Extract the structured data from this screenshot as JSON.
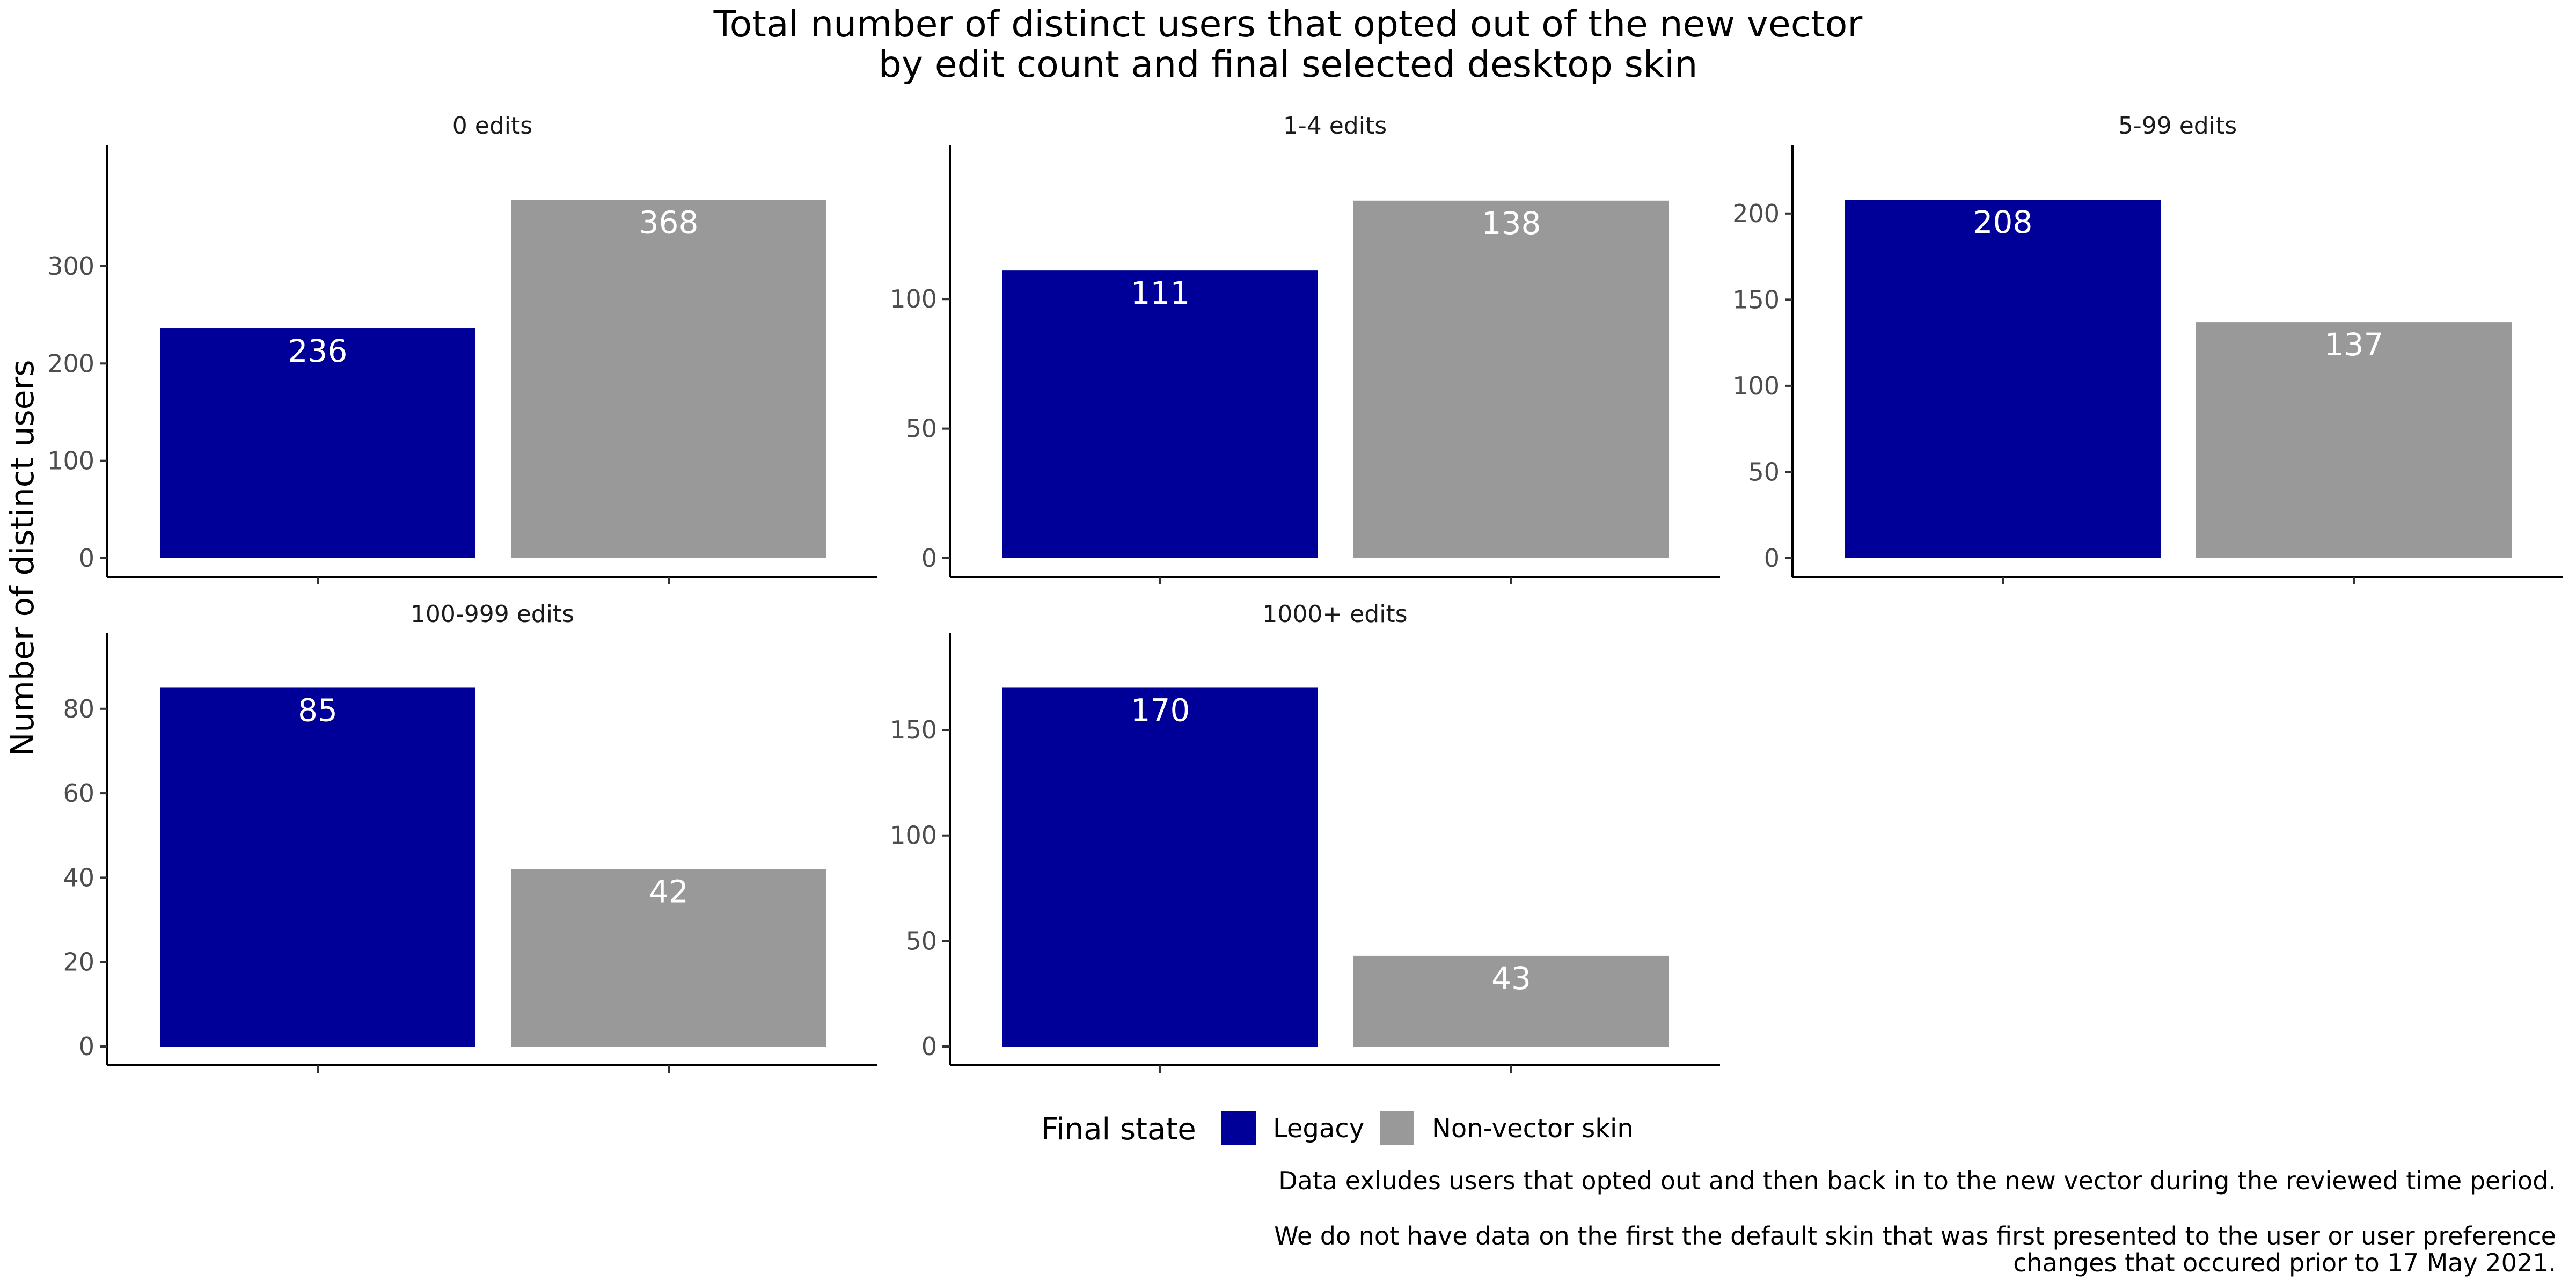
{
  "title_line1": "Total number of distinct users that opted out of the new vector",
  "title_line2": "by edit count and final selected desktop skin",
  "ylabel": "Number of distinct users",
  "legend": {
    "title": "Final state",
    "items": [
      {
        "label": "Legacy",
        "color": "#000099"
      },
      {
        "label": "Non-vector skin",
        "color": "#999999"
      }
    ]
  },
  "caption_lines": [
    "Data exludes users that opted out and then back in to the new vector during the reviewed time period.",
    "We do not have data on the first the default skin that was first presented to the user or user preference",
    "changes that occured prior to 17 May 2021."
  ],
  "colors": {
    "label_text": "#ffffff",
    "axis": "#000000",
    "tick_text": "#4d4d4d"
  },
  "chart_data": [
    {
      "type": "bar",
      "facet": "0 edits",
      "categories": [
        "Legacy",
        "Non-vector skin"
      ],
      "values": [
        236,
        368
      ],
      "yticks": [
        0,
        100,
        200,
        300
      ],
      "ylim": [
        0,
        386
      ]
    },
    {
      "type": "bar",
      "facet": "1-4 edits",
      "categories": [
        "Legacy",
        "Non-vector skin"
      ],
      "values": [
        111,
        138
      ],
      "yticks": [
        0,
        50,
        100
      ],
      "ylim": [
        0,
        145
      ]
    },
    {
      "type": "bar",
      "facet": "5-99 edits",
      "categories": [
        "Legacy",
        "Non-vector skin"
      ],
      "values": [
        208,
        137
      ],
      "yticks": [
        0,
        50,
        100,
        150,
        200
      ],
      "ylim": [
        0,
        218
      ]
    },
    {
      "type": "bar",
      "facet": "100-999 edits",
      "categories": [
        "Legacy",
        "Non-vector skin"
      ],
      "values": [
        85,
        42
      ],
      "yticks": [
        0,
        20,
        40,
        60,
        80
      ],
      "ylim": [
        0,
        89
      ]
    },
    {
      "type": "bar",
      "facet": "1000+ edits",
      "categories": [
        "Legacy",
        "Non-vector skin"
      ],
      "values": [
        170,
        43
      ],
      "yticks": [
        0,
        50,
        100,
        150
      ],
      "ylim": [
        0,
        178
      ]
    }
  ]
}
